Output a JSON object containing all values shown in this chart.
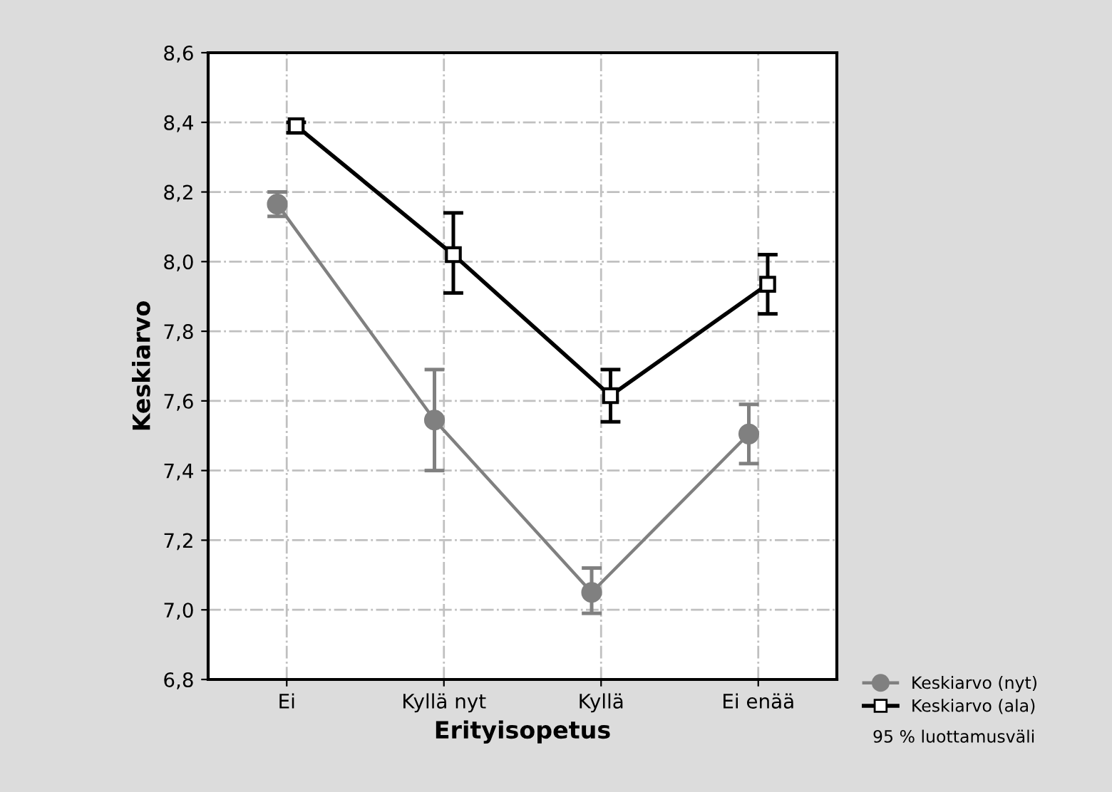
{
  "chart_data": {
    "type": "line",
    "xlabel": "Erityisopetus",
    "ylabel": "Keskiarvo",
    "categories": [
      "Ei",
      "Kyllä nyt",
      "Kyllä",
      "Ei enää"
    ],
    "series": [
      {
        "name": "Keskiarvo (nyt)",
        "color": "#808080",
        "marker": "circle",
        "values": [
          8.165,
          7.545,
          7.05,
          7.505
        ],
        "errors": [
          [
            8.13,
            8.2
          ],
          [
            7.4,
            7.69
          ],
          [
            6.99,
            7.12
          ],
          [
            7.42,
            7.59
          ]
        ]
      },
      {
        "name": "Keskiarvo (ala)",
        "color": "#000000",
        "marker": "square",
        "values": [
          8.39,
          8.02,
          7.615,
          7.935
        ],
        "errors": [
          [
            8.37,
            8.4
          ],
          [
            7.91,
            8.14
          ],
          [
            7.54,
            7.69
          ],
          [
            7.85,
            8.02
          ]
        ]
      }
    ],
    "ylim": [
      6.8,
      8.6
    ],
    "yticks": [
      {
        "value": 6.8,
        "label": "6,8"
      },
      {
        "value": 7.0,
        "label": "7,0"
      },
      {
        "value": 7.2,
        "label": "7,2"
      },
      {
        "value": 7.4,
        "label": "7,4"
      },
      {
        "value": 7.6,
        "label": "7,6"
      },
      {
        "value": 7.8,
        "label": "7,8"
      },
      {
        "value": 8.0,
        "label": "8,0"
      },
      {
        "value": 8.2,
        "label": "8,2"
      },
      {
        "value": 8.4,
        "label": "8,4"
      },
      {
        "value": 8.6,
        "label": "8,6"
      }
    ],
    "grid": true,
    "legend": "bottom right",
    "line_style": "solid",
    "annotations": [
      "95 % luottamusväli"
    ]
  }
}
